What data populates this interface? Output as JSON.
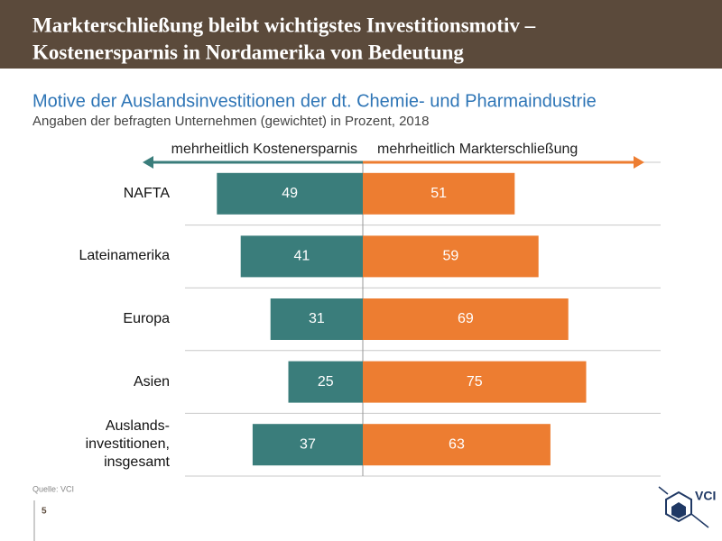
{
  "slide": {
    "title": [
      "Markterschließung bleibt wichtigstes Investitionsmotiv –",
      "Kostenersparnis in Nordamerika von Bedeutung"
    ],
    "source": "Quelle: VCI",
    "page": "5",
    "logo": "VCI"
  },
  "chart_data": {
    "type": "diverging-bar",
    "title": "Motive der Auslandsinvestitionen der dt. Chemie- und Pharmaindustrie",
    "subtitle": "Angaben der befragten Unternehmen (gewichtet) in Prozent, 2018",
    "categories": [
      "NAFTA",
      "Lateinamerika",
      "Europa",
      "Asien",
      "Auslands-\ninvestitionen,\ninsgesamt"
    ],
    "series": [
      {
        "name": "mehrheitlich Kostenersparnis",
        "color": "#3a7d7b",
        "values": [
          49,
          41,
          31,
          25,
          37
        ]
      },
      {
        "name": "mehrheitlich Markterschließung",
        "color": "#ed7d31",
        "values": [
          51,
          59,
          69,
          75,
          63
        ]
      }
    ],
    "grid": true
  }
}
